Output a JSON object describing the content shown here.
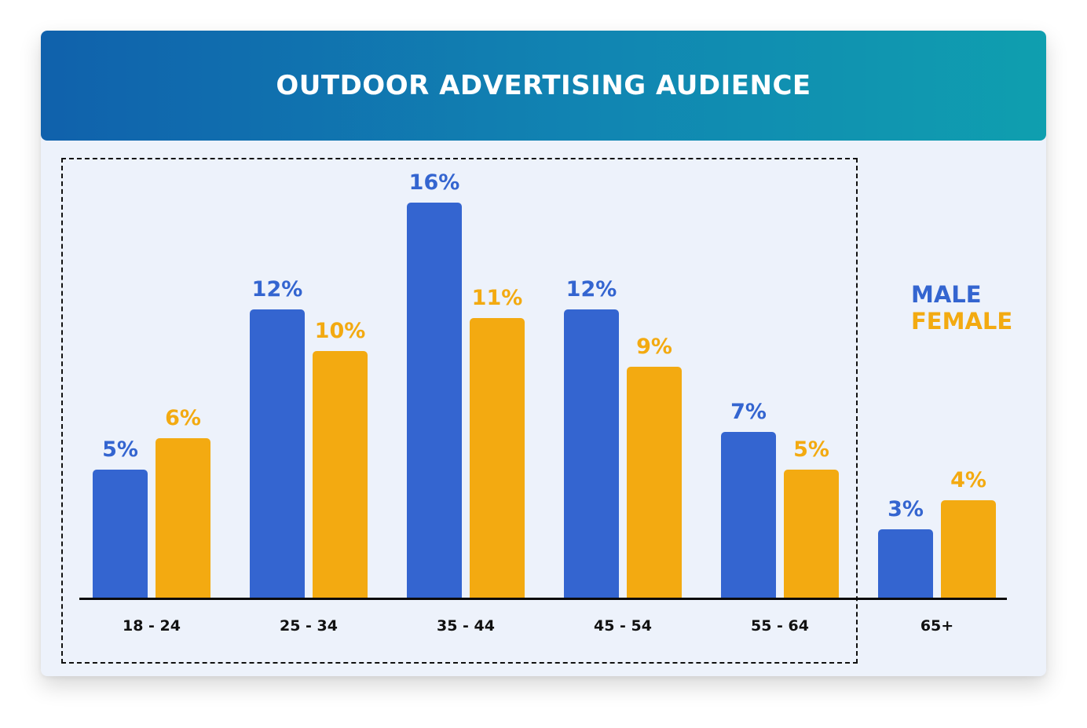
{
  "header": {
    "title": "OUTDOOR ADVERTISING AUDIENCE"
  },
  "legend": {
    "male": "MALE",
    "female": "FEMALE"
  },
  "colors": {
    "male": "#3465D0",
    "female": "#F3AA11",
    "header_start": "#1061AC",
    "header_end": "#0F9FAF",
    "background": "#EDF2FB"
  },
  "groups": [
    {
      "label": "18 - 24",
      "male": "5%",
      "female": "6%"
    },
    {
      "label": "25 - 34",
      "male": "12%",
      "female": "10%"
    },
    {
      "label": "35 - 44",
      "male": "16%",
      "female": "11%"
    },
    {
      "label": "45 - 54",
      "male": "12%",
      "female": "9%"
    },
    {
      "label": "55 - 64",
      "male": "7%",
      "female": "5%"
    },
    {
      "label": "65+",
      "male": "3%",
      "female": "4%"
    }
  ],
  "chart_data": {
    "type": "bar",
    "title": "OUTDOOR ADVERTISING AUDIENCE",
    "categories": [
      "18 - 24",
      "25 - 34",
      "35 - 44",
      "45 - 54",
      "55 - 64",
      "65+"
    ],
    "series": [
      {
        "name": "MALE",
        "color": "#3465D0",
        "values": [
          5,
          12,
          16,
          12,
          7,
          3
        ]
      },
      {
        "name": "FEMALE",
        "color": "#F3AA11",
        "values": [
          6,
          10,
          11,
          9,
          5,
          4
        ]
      }
    ],
    "xlabel": "",
    "ylabel": "",
    "unit": "%",
    "data_labels": true,
    "grid": false,
    "legend_position": "right",
    "annotations": [
      "Dashed box highlights age groups 18 - 24 through 55 - 64"
    ]
  }
}
